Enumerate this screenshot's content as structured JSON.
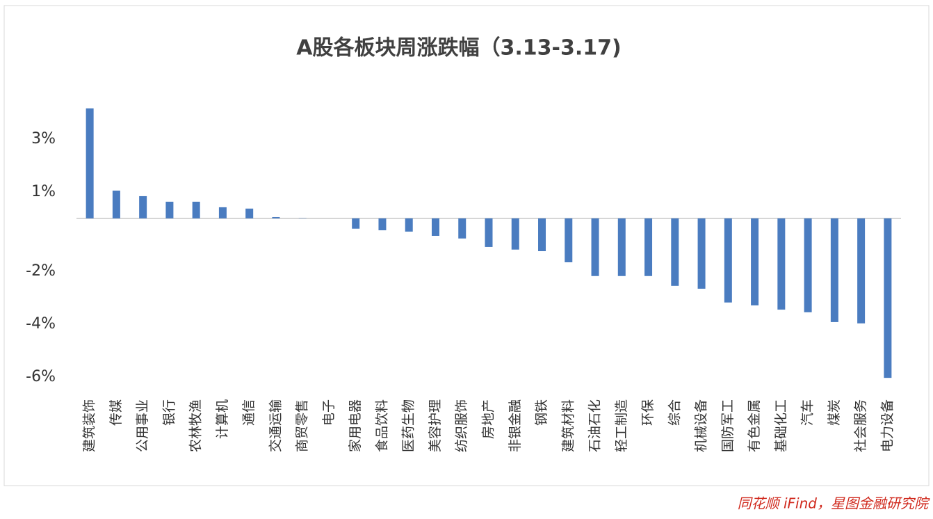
{
  "chart_data": {
    "type": "bar",
    "title": "A股各板块周涨跌幅（3.13-3.17)",
    "categories": [
      "建筑装饰",
      "传媒",
      "公用事业",
      "银行",
      "农林牧渔",
      "计算机",
      "通信",
      "交通运输",
      "商贸零售",
      "电子",
      "家用电器",
      "食品饮料",
      "医药生物",
      "美容护理",
      "纺织服饰",
      "房地产",
      "非银金融",
      "钢铁",
      "建筑材料",
      "石油石化",
      "轻工制造",
      "环保",
      "综合",
      "机械设备",
      "国防军工",
      "有色金属",
      "基础化工",
      "汽车",
      "煤炭",
      "社会服务",
      "电力设备"
    ],
    "values": [
      4.16,
      1.05,
      0.84,
      0.63,
      0.63,
      0.42,
      0.37,
      0.05,
      0.01,
      0.0,
      -0.39,
      -0.45,
      -0.5,
      -0.66,
      -0.76,
      -1.08,
      -1.18,
      -1.24,
      -1.66,
      -2.18,
      -2.18,
      -2.18,
      -2.55,
      -2.66,
      -3.18,
      -3.29,
      -3.45,
      -3.55,
      -3.92,
      -3.97,
      -6.03
    ],
    "color": "#4a7cc0",
    "ylim": [
      -6.5,
      4.6
    ],
    "yticks": [
      {
        "value": 3,
        "label": "3%"
      },
      {
        "value": 1,
        "label": "1%"
      },
      {
        "value": -2,
        "label": "-2%"
      },
      {
        "value": -4,
        "label": "-4%"
      },
      {
        "value": -6,
        "label": "-6%"
      }
    ],
    "grid": false,
    "source": "同花顺 iFind，星图金融研究院"
  }
}
